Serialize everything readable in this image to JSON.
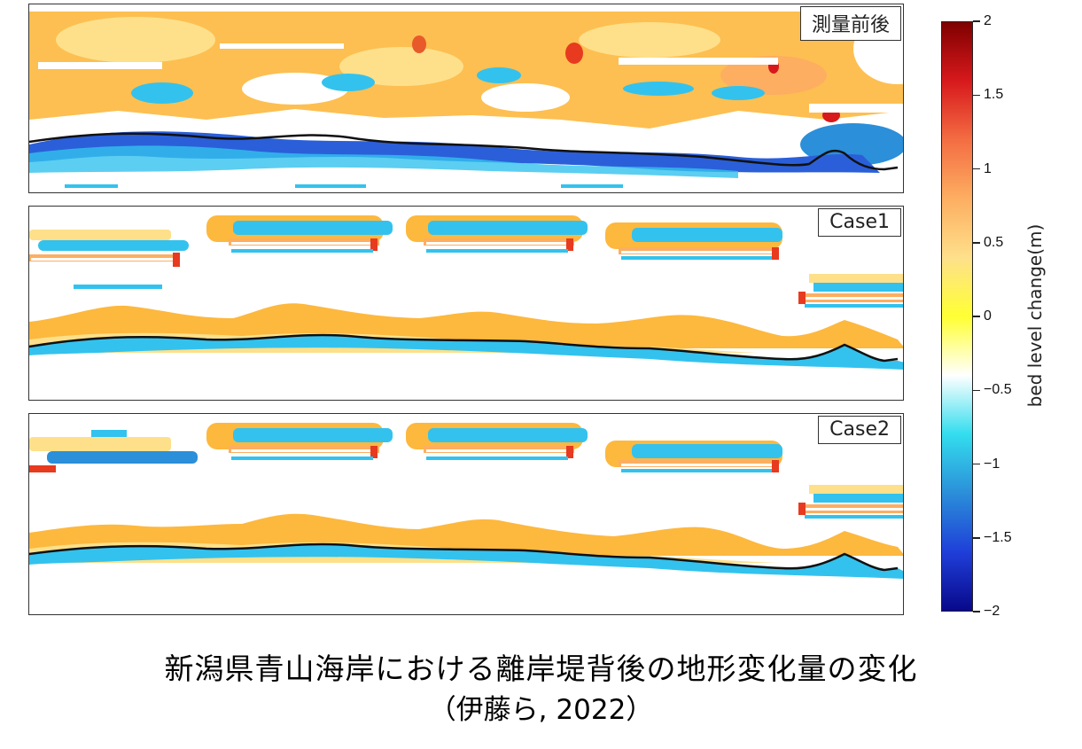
{
  "chart_data": {
    "type": "heatmap",
    "panels": [
      {
        "label": "測量前後"
      },
      {
        "label": "Case1"
      },
      {
        "label": "Case2"
      }
    ],
    "colorbar": {
      "label": "bed level change(m)",
      "range": [
        -2,
        2
      ],
      "ticks": [
        "2",
        "1.5",
        "1",
        "0.5",
        "0",
        "−0.5",
        "−1",
        "−1.5",
        "−2"
      ],
      "tick_values": [
        2,
        1.5,
        1,
        0.5,
        0,
        -0.5,
        -1,
        -1.5,
        -2
      ],
      "colormap": [
        "#7f0000",
        "#d7191c",
        "#f46d43",
        "#fdae61",
        "#fee08b",
        "#ffff33",
        "#ffffff",
        "#33ddee",
        "#2b8fd9",
        "#1f3fd9",
        "#08088a"
      ]
    }
  },
  "caption": {
    "line1": "新潟県青山海岸における離岸堤背後の地形変化量の変化",
    "line2": "（伊藤ら, 2022）"
  }
}
